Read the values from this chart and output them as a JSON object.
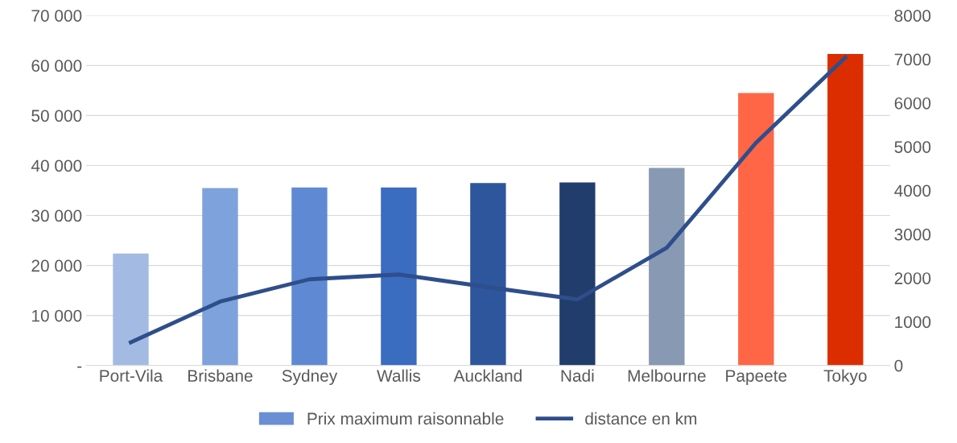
{
  "chart_data": {
    "type": "bar",
    "categories": [
      "Port-Vila",
      "Brisbane",
      "Sydney",
      "Wallis",
      "Auckland",
      "Nadi",
      "Melbourne",
      "Papeete",
      "Tokyo"
    ],
    "series": [
      {
        "name": "Prix maximum raisonnable",
        "color": "#6a8fd4",
        "colors": [
          "#a3bbe3",
          "#7ea2dc",
          "#5f8ad3",
          "#3a6cc0",
          "#2d569c",
          "#213d6c",
          "#8899b3",
          "#ff6645",
          "#dc2d00"
        ],
        "values": [
          22400,
          35500,
          35600,
          35600,
          36500,
          36600,
          39500,
          54500,
          62300
        ]
      },
      {
        "name": "distance en km",
        "type": "line",
        "axis": "y2",
        "color": "#2e4e8c",
        "values": [
          530,
          1460,
          1970,
          2080,
          1790,
          1510,
          2690,
          5090,
          7040
        ]
      }
    ],
    "ylim": [
      0,
      70000
    ],
    "yticks": [
      {
        "value": 0,
        "label": "-"
      },
      {
        "value": 10000,
        "label": "10 000"
      },
      {
        "value": 20000,
        "label": "20 000"
      },
      {
        "value": 30000,
        "label": "30 000"
      },
      {
        "value": 40000,
        "label": "40 000"
      },
      {
        "value": 50000,
        "label": "50 000"
      },
      {
        "value": 60000,
        "label": "60 000"
      },
      {
        "value": 70000,
        "label": "70 000"
      }
    ],
    "y2lim": [
      0,
      8000
    ],
    "y2ticks": [
      0,
      1000,
      2000,
      3000,
      4000,
      5000,
      6000,
      7000,
      8000
    ],
    "grid": "y",
    "legend": "bottom",
    "marker": "none",
    "line_style": "solid"
  }
}
